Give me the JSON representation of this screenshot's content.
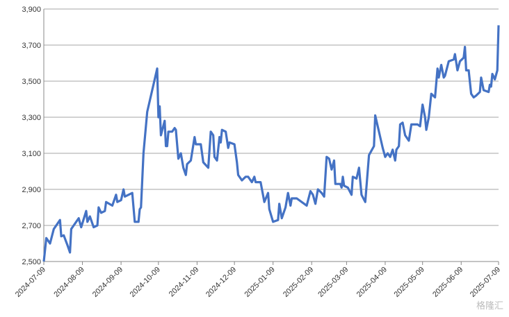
{
  "chart_data": {
    "type": "line",
    "x": [
      "2024-07-09",
      "2024-07-11",
      "2024-07-14",
      "2024-07-17",
      "2024-07-22",
      "2024-07-23",
      "2024-07-25",
      "2024-07-28",
      "2024-07-30",
      "2024-07-31",
      "2024-08-02",
      "2024-08-04",
      "2024-08-06",
      "2024-08-08",
      "2024-08-12",
      "2024-08-13",
      "2024-08-15",
      "2024-08-18",
      "2024-08-21",
      "2024-08-22",
      "2024-08-24",
      "2024-08-27",
      "2024-08-28",
      "2024-09-02",
      "2024-09-05",
      "2024-09-06",
      "2024-09-09",
      "2024-09-11",
      "2024-09-12",
      "2024-09-18",
      "2024-09-20",
      "2024-09-23",
      "2024-09-24",
      "2024-09-25",
      "2024-09-27",
      "2024-09-30",
      "2024-10-08",
      "2024-10-09",
      "2024-10-10",
      "2024-10-11",
      "2024-10-14",
      "2024-10-15",
      "2024-10-16",
      "2024-10-17",
      "2024-10-20",
      "2024-10-22",
      "2024-10-23",
      "2024-10-25",
      "2024-10-27",
      "2024-10-29",
      "2024-10-31",
      "2024-11-01",
      "2024-11-04",
      "2024-11-07",
      "2024-11-08",
      "2024-11-12",
      "2024-11-14",
      "2024-11-18",
      "2024-11-20",
      "2024-11-22",
      "2024-11-23",
      "2024-11-25",
      "2024-11-27",
      "2024-11-28",
      "2024-11-29",
      "2024-12-02",
      "2024-12-04",
      "2024-12-05",
      "2024-12-09",
      "2024-12-11",
      "2024-12-12",
      "2024-12-15",
      "2024-12-18",
      "2024-12-20",
      "2024-12-23",
      "2024-12-25",
      "2024-12-26",
      "2024-12-30",
      "2025-01-02",
      "2025-01-05",
      "2025-01-06",
      "2025-01-09",
      "2025-01-13",
      "2025-01-14",
      "2025-01-16",
      "2025-01-19",
      "2025-01-21",
      "2025-01-23",
      "2025-01-24",
      "2025-01-28",
      "2025-02-05",
      "2025-02-08",
      "2025-02-10",
      "2025-02-12",
      "2025-02-14",
      "2025-02-17",
      "2025-02-19",
      "2025-02-21",
      "2025-02-23",
      "2025-02-25",
      "2025-02-27",
      "2025-02-28",
      "2025-03-04",
      "2025-03-05",
      "2025-03-06",
      "2025-03-07",
      "2025-03-10",
      "2025-03-13",
      "2025-03-14",
      "2025-03-17",
      "2025-03-19",
      "2025-03-21",
      "2025-03-24",
      "2025-03-27",
      "2025-03-31",
      "2025-04-01",
      "2025-04-03",
      "2025-04-07",
      "2025-04-09",
      "2025-04-11",
      "2025-04-13",
      "2025-04-15",
      "2025-04-17",
      "2025-04-18",
      "2025-04-20",
      "2025-04-21",
      "2025-04-23",
      "2025-04-25",
      "2025-04-28",
      "2025-04-30",
      "2025-05-05",
      "2025-05-07",
      "2025-05-09",
      "2025-05-11",
      "2025-05-12",
      "2025-05-14",
      "2025-05-16",
      "2025-05-19",
      "2025-05-21",
      "2025-05-22",
      "2025-05-24",
      "2025-05-26",
      "2025-05-27",
      "2025-05-30",
      "2025-06-03",
      "2025-06-04",
      "2025-06-06",
      "2025-06-08",
      "2025-06-11",
      "2025-06-12",
      "2025-06-13",
      "2025-06-15",
      "2025-06-17",
      "2025-06-19",
      "2025-06-21",
      "2025-06-24",
      "2025-06-25",
      "2025-06-27",
      "2025-07-01",
      "2025-07-02",
      "2025-07-03",
      "2025-07-04",
      "2025-07-06",
      "2025-07-08",
      "2025-07-09"
    ],
    "series": [
      {
        "color": "#4472c4",
        "values": [
          2500,
          2630,
          2600,
          2680,
          2730,
          2640,
          2645,
          2590,
          2550,
          2680,
          2700,
          2720,
          2740,
          2690,
          2780,
          2720,
          2750,
          2690,
          2700,
          2800,
          2770,
          2780,
          2830,
          2810,
          2870,
          2830,
          2840,
          2900,
          2860,
          2880,
          2720,
          2720,
          2790,
          2800,
          3100,
          3330,
          3570,
          3300,
          3360,
          3200,
          3280,
          3140,
          3140,
          3220,
          3220,
          3240,
          3230,
          3070,
          3100,
          3020,
          2980,
          3040,
          3060,
          3190,
          3150,
          3150,
          3050,
          3020,
          3220,
          3200,
          3080,
          3060,
          3190,
          3160,
          3230,
          3220,
          3130,
          3160,
          3150,
          3050,
          2980,
          2950,
          2970,
          2970,
          2940,
          2970,
          2940,
          2940,
          2830,
          2880,
          2790,
          2720,
          2730,
          2820,
          2740,
          2800,
          2880,
          2810,
          2850,
          2850,
          2810,
          2890,
          2870,
          2820,
          2900,
          2880,
          2860,
          3080,
          3070,
          3010,
          3060,
          2930,
          2930,
          2910,
          2970,
          2920,
          2910,
          2870,
          2970,
          2960,
          3020,
          2870,
          2830,
          3090,
          3140,
          3310,
          3250,
          3130,
          3080,
          3100,
          3080,
          3120,
          3060,
          3120,
          3140,
          3260,
          3270,
          3200,
          3170,
          3260,
          3260,
          3250,
          3370,
          3300,
          3230,
          3300,
          3430,
          3410,
          3570,
          3520,
          3590,
          3520,
          3530,
          3610,
          3620,
          3650,
          3560,
          3610,
          3630,
          3690,
          3560,
          3560,
          3430,
          3410,
          3420,
          3440,
          3520,
          3450,
          3440,
          3480,
          3470,
          3540,
          3510,
          3560,
          3810
        ]
      }
    ],
    "xlim": [
      "2024-07-09",
      "2025-07-09"
    ],
    "xticks": [
      "2024-07-09",
      "2024-08-09",
      "2024-09-09",
      "2024-10-09",
      "2024-11-09",
      "2024-12-09",
      "2025-01-09",
      "2025-02-09",
      "2025-03-09",
      "2025-04-09",
      "2025-05-09",
      "2025-06-09",
      "2025-07-09"
    ],
    "ylim": [
      2500,
      3900
    ],
    "yticks": [
      {
        "value": 2500,
        "label": "2,500"
      },
      {
        "value": 2700,
        "label": "2,700"
      },
      {
        "value": 2900,
        "label": "2,900"
      },
      {
        "value": 3100,
        "label": "3,100"
      },
      {
        "value": 3300,
        "label": "3,300"
      },
      {
        "value": 3500,
        "label": "3,500"
      },
      {
        "value": 3700,
        "label": "3,700"
      },
      {
        "value": 3900,
        "label": "3,900"
      }
    ],
    "grid": true,
    "watermark": "格隆汇"
  }
}
